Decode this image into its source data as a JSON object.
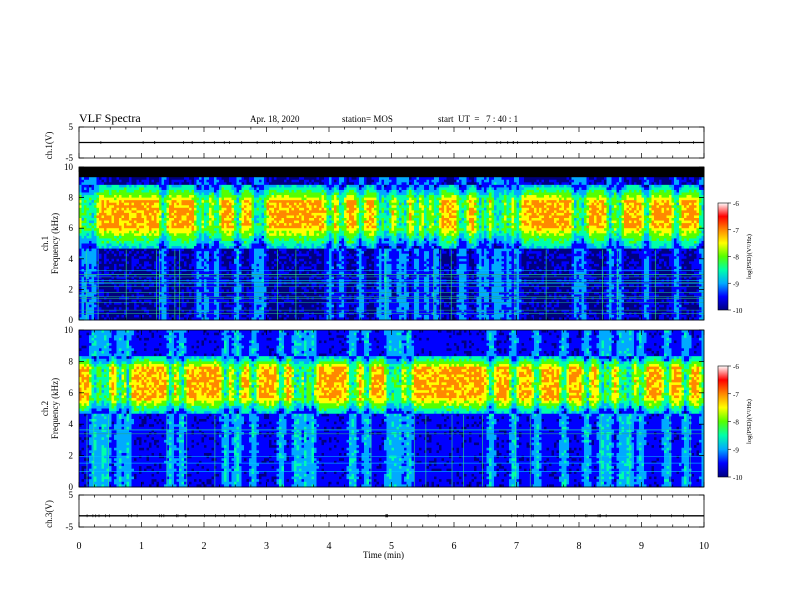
{
  "header": {
    "title": "VLF Spectra",
    "date": "Apr. 18, 2020",
    "station": "station= MOS",
    "start_ut": "start  UT  =   7 : 40 : 1"
  },
  "chart_data": [
    {
      "type": "line",
      "panel": "ch1-waveform",
      "ylabel": "ch.1(V)",
      "yticks": [
        "5",
        "-5"
      ],
      "ylim": [
        -5,
        5
      ],
      "x": [
        0,
        10
      ],
      "values": [
        0,
        0
      ]
    },
    {
      "type": "heatmap",
      "panel": "ch1-spectrogram",
      "ylabel": "ch.1\nFrequency (kHz)",
      "yticks": [
        "0",
        "2",
        "4",
        "6",
        "8",
        "10"
      ],
      "ylim": [
        0,
        10
      ],
      "xlim": [
        0,
        10
      ],
      "colorbar": {
        "label": "log(PSD)(V²/Hz)",
        "ticks": [
          "-6",
          "-7",
          "-8",
          "-9",
          "-10"
        ],
        "range": [
          -10,
          -6
        ]
      },
      "description_bands_khz": {
        "noise_top": 9.3,
        "intense_low": 6.0,
        "intense_high": 7.8,
        "active_low": 4.6,
        "active_high": 8.9
      }
    },
    {
      "type": "heatmap",
      "panel": "ch2-spectrogram",
      "ylabel": "ch.2\nFrequency (kHz)",
      "yticks": [
        "0",
        "2",
        "4",
        "6",
        "8",
        "10"
      ],
      "ylim": [
        0,
        10
      ],
      "xlim": [
        0,
        10
      ],
      "colorbar": {
        "label": "log(PSD)(V²/Hz)",
        "ticks": [
          "-6",
          "-7",
          "-8",
          "-9",
          "-10"
        ],
        "range": [
          -10,
          -6
        ]
      },
      "description_bands_khz": {
        "intense_low": 5.6,
        "intense_high": 7.6,
        "active_low": 4.6,
        "active_high": 8.4
      }
    },
    {
      "type": "line",
      "panel": "ch3-waveform",
      "ylabel": "ch.3(V)",
      "yticks": [
        "5",
        "-5"
      ],
      "ylim": [
        -5,
        5
      ],
      "x": [
        0,
        10
      ],
      "values": [
        -1.5,
        -1.5
      ]
    }
  ],
  "xaxis": {
    "label": "Time  (min)",
    "ticks": [
      "0",
      "1",
      "2",
      "3",
      "4",
      "5",
      "6",
      "7",
      "8",
      "9",
      "10"
    ],
    "range": [
      0,
      10
    ]
  },
  "colors": {
    "colormap": [
      "#000080",
      "#0000ff",
      "#00aaff",
      "#00ffaa",
      "#55ff00",
      "#ffff00",
      "#ff8800",
      "#ff0000",
      "#ffffff"
    ]
  }
}
